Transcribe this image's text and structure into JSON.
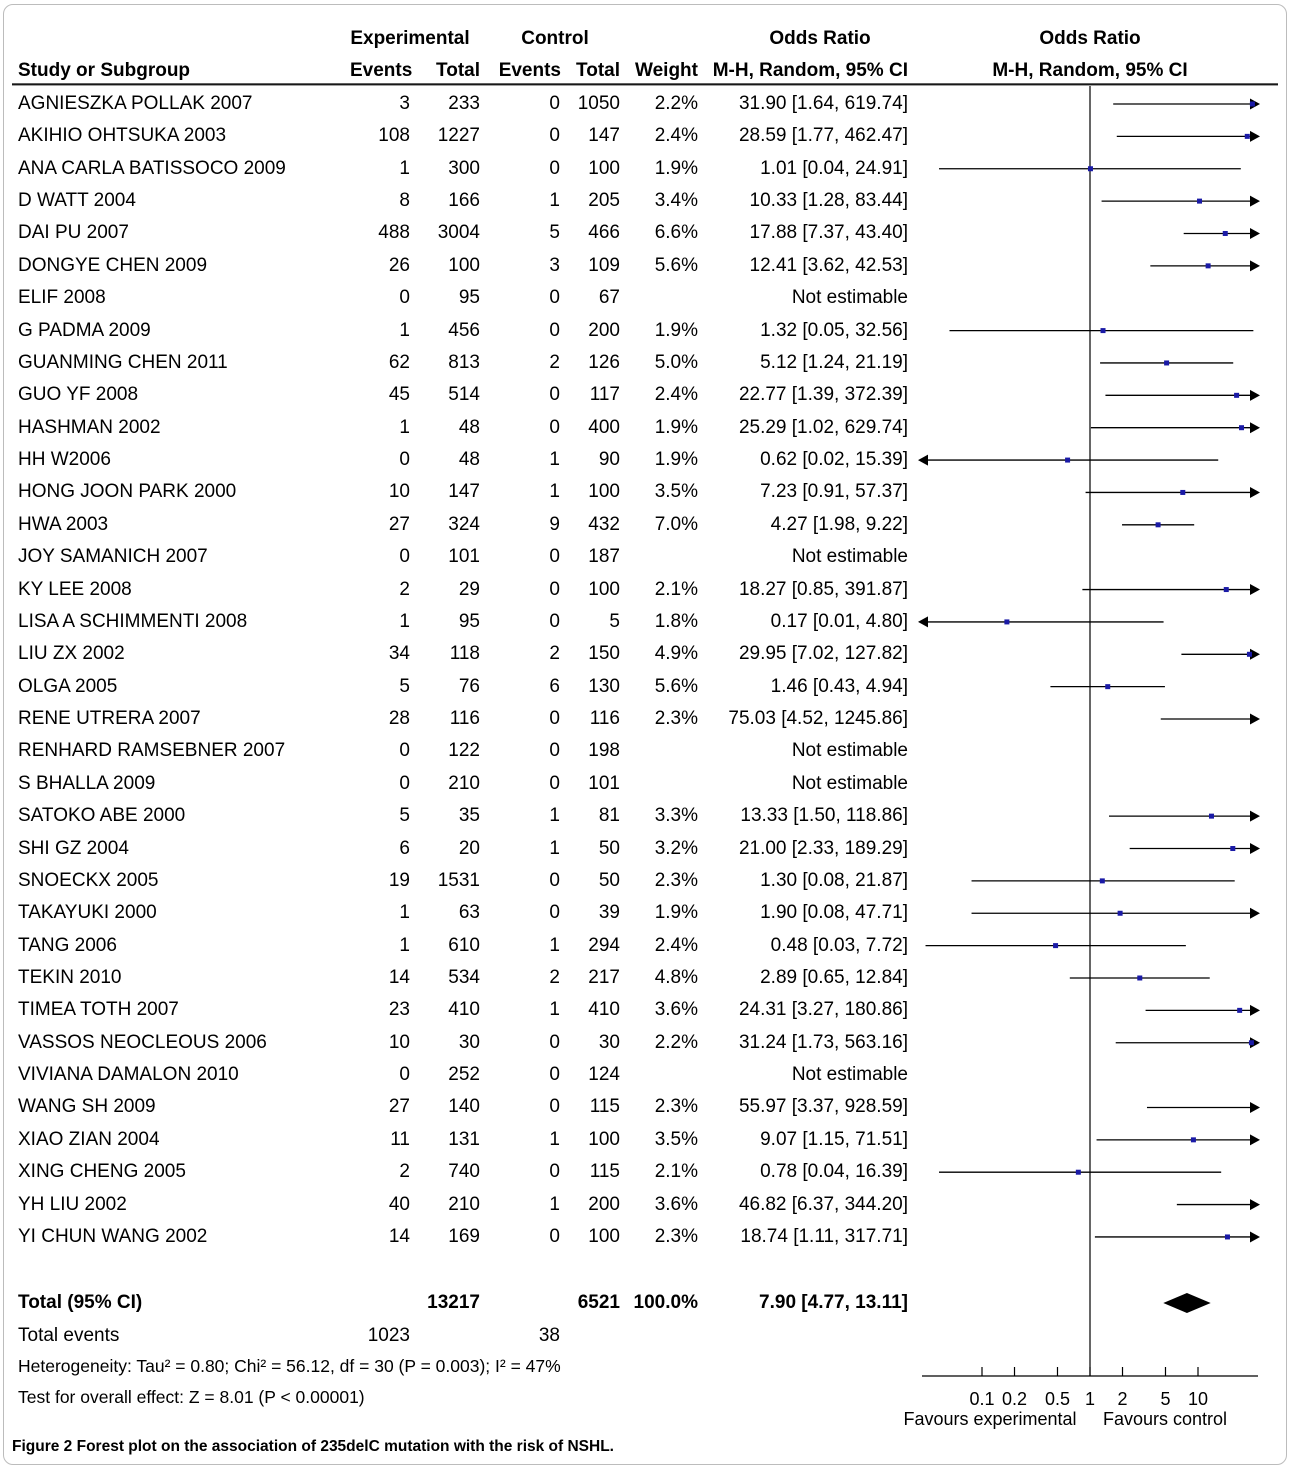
{
  "header": {
    "group1": "Experimental",
    "group2": "Control",
    "stat_col": "Odds Ratio",
    "plot_col": "Odds Ratio",
    "col_study": "Study or Subgroup",
    "col_events1": "Events",
    "col_total1": "Total",
    "col_events2": "Events",
    "col_total2": "Total",
    "col_weight": "Weight",
    "col_method": "M-H, Random, 95% CI",
    "col_method_plot": "M-H, Random, 95% CI"
  },
  "chart_data": {
    "type": "forest",
    "scale": "log",
    "x_ticks": [
      0.1,
      0.2,
      0.5,
      1,
      2,
      5,
      10
    ],
    "x_tick_labels": [
      "0.1",
      "0.2",
      "0.5",
      "1",
      "2",
      "5",
      "10"
    ],
    "x_range": [
      0.05,
      14
    ],
    "favours_left": "Favours experimental",
    "favours_right": "Favours control",
    "studies": [
      {
        "name": "AGNIESZKA POLLAK 2007",
        "e1": "3",
        "t1": "233",
        "e2": "0",
        "t2": "1050",
        "weight": "2.2%",
        "ci_text": "31.90 [1.64, 619.74]",
        "or": 31.9,
        "lo": 1.64,
        "hi": 619.74
      },
      {
        "name": "AKIHIO OHTSUKA 2003",
        "e1": "108",
        "t1": "1227",
        "e2": "0",
        "t2": "147",
        "weight": "2.4%",
        "ci_text": "28.59 [1.77, 462.47]",
        "or": 28.59,
        "lo": 1.77,
        "hi": 462.47
      },
      {
        "name": "ANA CARLA BATISSOCO 2009",
        "e1": "1",
        "t1": "300",
        "e2": "0",
        "t2": "100",
        "weight": "1.9%",
        "ci_text": "1.01 [0.04, 24.91]",
        "or": 1.01,
        "lo": 0.04,
        "hi": 24.91
      },
      {
        "name": "D WATT 2004",
        "e1": "8",
        "t1": "166",
        "e2": "1",
        "t2": "205",
        "weight": "3.4%",
        "ci_text": "10.33 [1.28, 83.44]",
        "or": 10.33,
        "lo": 1.28,
        "hi": 83.44
      },
      {
        "name": "DAI PU 2007",
        "e1": "488",
        "t1": "3004",
        "e2": "5",
        "t2": "466",
        "weight": "6.6%",
        "ci_text": "17.88 [7.37, 43.40]",
        "or": 17.88,
        "lo": 7.37,
        "hi": 43.4
      },
      {
        "name": "DONGYE CHEN 2009",
        "e1": "26",
        "t1": "100",
        "e2": "3",
        "t2": "109",
        "weight": "5.6%",
        "ci_text": "12.41 [3.62, 42.53]",
        "or": 12.41,
        "lo": 3.62,
        "hi": 42.53
      },
      {
        "name": "ELIF 2008",
        "e1": "0",
        "t1": "95",
        "e2": "0",
        "t2": "67",
        "weight": "",
        "ci_text": "Not estimable",
        "or": null,
        "lo": null,
        "hi": null
      },
      {
        "name": "G PADMA 2009",
        "e1": "1",
        "t1": "456",
        "e2": "0",
        "t2": "200",
        "weight": "1.9%",
        "ci_text": "1.32 [0.05, 32.56]",
        "or": 1.32,
        "lo": 0.05,
        "hi": 32.56
      },
      {
        "name": "GUANMING CHEN 2011",
        "e1": "62",
        "t1": "813",
        "e2": "2",
        "t2": "126",
        "weight": "5.0%",
        "ci_text": "5.12 [1.24, 21.19]",
        "or": 5.12,
        "lo": 1.24,
        "hi": 21.19
      },
      {
        "name": "GUO YF 2008",
        "e1": "45",
        "t1": "514",
        "e2": "0",
        "t2": "117",
        "weight": "2.4%",
        "ci_text": "22.77 [1.39, 372.39]",
        "or": 22.77,
        "lo": 1.39,
        "hi": 372.39
      },
      {
        "name": "HASHMAN 2002",
        "e1": "1",
        "t1": "48",
        "e2": "0",
        "t2": "400",
        "weight": "1.9%",
        "ci_text": "25.29 [1.02, 629.74]",
        "or": 25.29,
        "lo": 1.02,
        "hi": 629.74
      },
      {
        "name": "HH W2006",
        "e1": "0",
        "t1": "48",
        "e2": "1",
        "t2": "90",
        "weight": "1.9%",
        "ci_text": "0.62 [0.02, 15.39]",
        "or": 0.62,
        "lo": 0.02,
        "hi": 15.39
      },
      {
        "name": "HONG JOON PARK 2000",
        "e1": "10",
        "t1": "147",
        "e2": "1",
        "t2": "100",
        "weight": "3.5%",
        "ci_text": "7.23 [0.91, 57.37]",
        "or": 7.23,
        "lo": 0.91,
        "hi": 57.37
      },
      {
        "name": "HWA 2003",
        "e1": "27",
        "t1": "324",
        "e2": "9",
        "t2": "432",
        "weight": "7.0%",
        "ci_text": "4.27 [1.98, 9.22]",
        "or": 4.27,
        "lo": 1.98,
        "hi": 9.22
      },
      {
        "name": "JOY SAMANICH 2007",
        "e1": "0",
        "t1": "101",
        "e2": "0",
        "t2": "187",
        "weight": "",
        "ci_text": "Not estimable",
        "or": null,
        "lo": null,
        "hi": null
      },
      {
        "name": "KY LEE 2008",
        "e1": "2",
        "t1": "29",
        "e2": "0",
        "t2": "100",
        "weight": "2.1%",
        "ci_text": "18.27 [0.85, 391.87]",
        "or": 18.27,
        "lo": 0.85,
        "hi": 391.87
      },
      {
        "name": "LISA A SCHIMMENTI 2008",
        "e1": "1",
        "t1": "95",
        "e2": "0",
        "t2": "5",
        "weight": "1.8%",
        "ci_text": "0.17 [0.01, 4.80]",
        "or": 0.17,
        "lo": 0.01,
        "hi": 4.8
      },
      {
        "name": "LIU ZX 2002",
        "e1": "34",
        "t1": "118",
        "e2": "2",
        "t2": "150",
        "weight": "4.9%",
        "ci_text": "29.95 [7.02, 127.82]",
        "or": 29.95,
        "lo": 7.02,
        "hi": 127.82
      },
      {
        "name": "OLGA 2005",
        "e1": "5",
        "t1": "76",
        "e2": "6",
        "t2": "130",
        "weight": "5.6%",
        "ci_text": "1.46 [0.43, 4.94]",
        "or": 1.46,
        "lo": 0.43,
        "hi": 4.94
      },
      {
        "name": "RENE UTRERA 2007",
        "e1": "28",
        "t1": "116",
        "e2": "0",
        "t2": "116",
        "weight": "2.3%",
        "ci_text": "75.03 [4.52, 1245.86]",
        "or": 75.03,
        "lo": 4.52,
        "hi": 1245.86
      },
      {
        "name": "RENHARD RAMSEBNER 2007",
        "e1": "0",
        "t1": "122",
        "e2": "0",
        "t2": "198",
        "weight": "",
        "ci_text": "Not estimable",
        "or": null,
        "lo": null,
        "hi": null
      },
      {
        "name": "S BHALLA 2009",
        "e1": "0",
        "t1": "210",
        "e2": "0",
        "t2": "101",
        "weight": "",
        "ci_text": "Not estimable",
        "or": null,
        "lo": null,
        "hi": null
      },
      {
        "name": "SATOKO ABE 2000",
        "e1": "5",
        "t1": "35",
        "e2": "1",
        "t2": "81",
        "weight": "3.3%",
        "ci_text": "13.33 [1.50, 118.86]",
        "or": 13.33,
        "lo": 1.5,
        "hi": 118.86
      },
      {
        "name": "SHI GZ 2004",
        "e1": "6",
        "t1": "20",
        "e2": "1",
        "t2": "50",
        "weight": "3.2%",
        "ci_text": "21.00 [2.33, 189.29]",
        "or": 21.0,
        "lo": 2.33,
        "hi": 189.29
      },
      {
        "name": "SNOECKX 2005",
        "e1": "19",
        "t1": "1531",
        "e2": "0",
        "t2": "50",
        "weight": "2.3%",
        "ci_text": "1.30 [0.08, 21.87]",
        "or": 1.3,
        "lo": 0.08,
        "hi": 21.87
      },
      {
        "name": "TAKAYUKI 2000",
        "e1": "1",
        "t1": "63",
        "e2": "0",
        "t2": "39",
        "weight": "1.9%",
        "ci_text": "1.90 [0.08, 47.71]",
        "or": 1.9,
        "lo": 0.08,
        "hi": 47.71
      },
      {
        "name": "TANG 2006",
        "e1": "1",
        "t1": "610",
        "e2": "1",
        "t2": "294",
        "weight": "2.4%",
        "ci_text": "0.48 [0.03, 7.72]",
        "or": 0.48,
        "lo": 0.03,
        "hi": 7.72
      },
      {
        "name": "TEKIN 2010",
        "e1": "14",
        "t1": "534",
        "e2": "2",
        "t2": "217",
        "weight": "4.8%",
        "ci_text": "2.89 [0.65, 12.84]",
        "or": 2.89,
        "lo": 0.65,
        "hi": 12.84
      },
      {
        "name": "TIMEA TOTH 2007",
        "e1": "23",
        "t1": "410",
        "e2": "1",
        "t2": "410",
        "weight": "3.6%",
        "ci_text": "24.31 [3.27, 180.86]",
        "or": 24.31,
        "lo": 3.27,
        "hi": 180.86
      },
      {
        "name": "VASSOS NEOCLEOUS 2006",
        "e1": "10",
        "t1": "30",
        "e2": "0",
        "t2": "30",
        "weight": "2.2%",
        "ci_text": "31.24 [1.73, 563.16]",
        "or": 31.24,
        "lo": 1.73,
        "hi": 563.16
      },
      {
        "name": "VIVIANA DAMALON 2010",
        "e1": "0",
        "t1": "252",
        "e2": "0",
        "t2": "124",
        "weight": "",
        "ci_text": "Not estimable",
        "or": null,
        "lo": null,
        "hi": null
      },
      {
        "name": "WANG SH 2009",
        "e1": "27",
        "t1": "140",
        "e2": "0",
        "t2": "115",
        "weight": "2.3%",
        "ci_text": "55.97 [3.37, 928.59]",
        "or": 55.97,
        "lo": 3.37,
        "hi": 928.59
      },
      {
        "name": "XIAO ZIAN 2004",
        "e1": "11",
        "t1": "131",
        "e2": "1",
        "t2": "100",
        "weight": "3.5%",
        "ci_text": "9.07 [1.15, 71.51]",
        "or": 9.07,
        "lo": 1.15,
        "hi": 71.51
      },
      {
        "name": "XING CHENG 2005",
        "e1": "2",
        "t1": "740",
        "e2": "0",
        "t2": "115",
        "weight": "2.1%",
        "ci_text": "0.78 [0.04, 16.39]",
        "or": 0.78,
        "lo": 0.04,
        "hi": 16.39
      },
      {
        "name": "YH LIU 2002",
        "e1": "40",
        "t1": "210",
        "e2": "1",
        "t2": "200",
        "weight": "3.6%",
        "ci_text": "46.82 [6.37, 344.20]",
        "or": 46.82,
        "lo": 6.37,
        "hi": 344.2
      },
      {
        "name": "YI CHUN WANG 2002",
        "e1": "14",
        "t1": "169",
        "e2": "0",
        "t2": "100",
        "weight": "2.3%",
        "ci_text": "18.74 [1.11, 317.71]",
        "or": 18.74,
        "lo": 1.11,
        "hi": 317.71
      }
    ],
    "total": {
      "name": "Total (95% CI)",
      "t1": "13217",
      "t2": "6521",
      "weight": "100.0%",
      "ci_text": "7.90 [4.77, 13.11]",
      "or": 7.9,
      "lo": 4.77,
      "hi": 13.11
    },
    "total_events": {
      "label": "Total events",
      "e1": "1023",
      "e2": "38"
    },
    "heterogeneity": "Heterogeneity: Tau² = 0.80; Chi² = 56.12, df = 30 (P = 0.003); I² = 47%",
    "overall_effect": "Test for overall effect: Z = 8.01 (P < 0.00001)"
  },
  "caption": {
    "label": "Figure 2",
    "text": "Forest plot on the association of 235delC mutation with the risk of NSHL."
  },
  "colors": {
    "marker": "#1a1aa6",
    "line": "#000000",
    "frame": "#bcbcbc"
  }
}
